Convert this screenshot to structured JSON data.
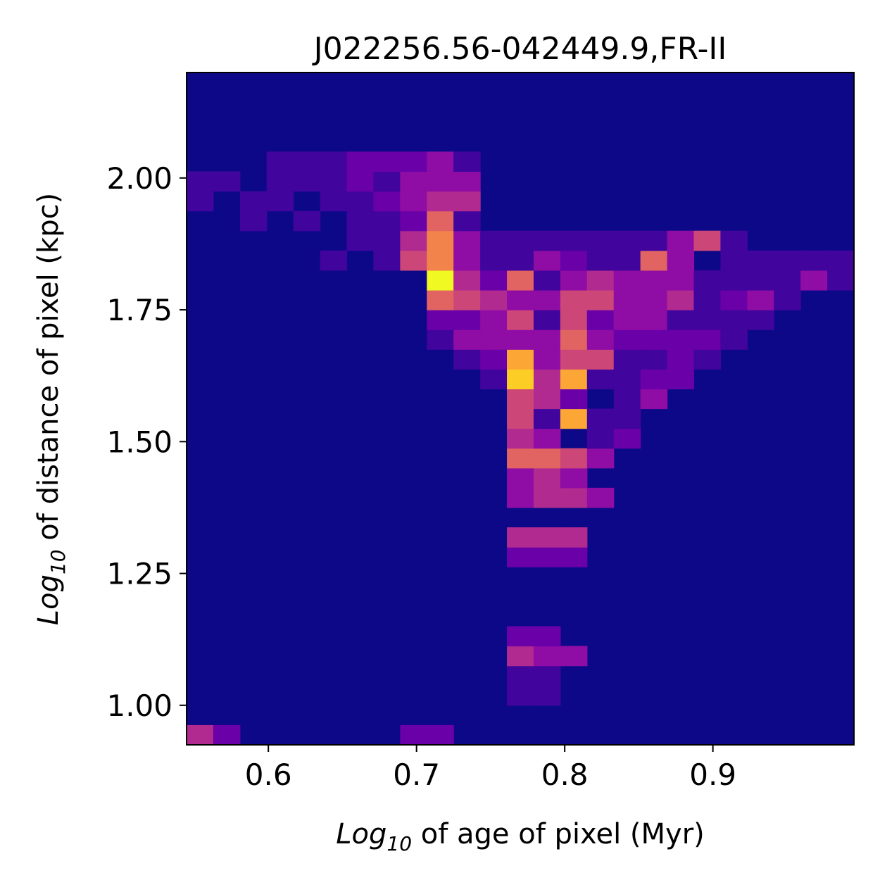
{
  "chart_data": {
    "type": "heatmap",
    "title": "J022256.56-042449.9,FR-II",
    "xlabel": {
      "prefix": "Log",
      "sub": "10",
      "rest": " of age of pixel (Myr)"
    },
    "ylabel": {
      "prefix": "Log",
      "sub": "10",
      "rest": " of distance of pixel (kpc)"
    },
    "xlim": [
      0.5448,
      0.9952
    ],
    "ylim": [
      0.925,
      2.2
    ],
    "x_ticks": [
      0.6,
      0.7,
      0.8,
      0.9
    ],
    "x_tick_labels": [
      "0.6",
      "0.7",
      "0.8",
      "0.9"
    ],
    "y_ticks": [
      1.0,
      1.25,
      1.5,
      1.75,
      2.0
    ],
    "y_tick_labels": [
      "1.00",
      "1.25",
      "1.50",
      "1.75",
      "2.00"
    ],
    "colormap": "plasma",
    "background_color": "#0d0887",
    "grid": false,
    "legend": "none",
    "bins": {
      "x_edges_range": [
        0.5448,
        0.9952
      ],
      "nx": 25,
      "y_edges_range": [
        0.925,
        2.2
      ],
      "ny": 34
    },
    "cells": [
      [
        0,
        0,
        4
      ],
      [
        1,
        0,
        2
      ],
      [
        8,
        0,
        2
      ],
      [
        9,
        0,
        2
      ],
      [
        12,
        2,
        1
      ],
      [
        13,
        2,
        1
      ],
      [
        12,
        3,
        1
      ],
      [
        13,
        3,
        1
      ],
      [
        12,
        4,
        4
      ],
      [
        13,
        4,
        3
      ],
      [
        14,
        4,
        3
      ],
      [
        12,
        5,
        2
      ],
      [
        13,
        5,
        2
      ],
      [
        12,
        9,
        2
      ],
      [
        13,
        9,
        2
      ],
      [
        14,
        9,
        2
      ],
      [
        12,
        10,
        4
      ],
      [
        13,
        10,
        4
      ],
      [
        14,
        10,
        4
      ],
      [
        12,
        12,
        3
      ],
      [
        13,
        12,
        4
      ],
      [
        14,
        12,
        4
      ],
      [
        15,
        12,
        3
      ],
      [
        12,
        13,
        3
      ],
      [
        13,
        13,
        4
      ],
      [
        14,
        13,
        3
      ],
      [
        12,
        14,
        6
      ],
      [
        13,
        14,
        6
      ],
      [
        14,
        14,
        5
      ],
      [
        15,
        14,
        3
      ],
      [
        12,
        15,
        4
      ],
      [
        13,
        15,
        3
      ],
      [
        15,
        15,
        1
      ],
      [
        16,
        15,
        2
      ],
      [
        12,
        16,
        5
      ],
      [
        13,
        16,
        1
      ],
      [
        14,
        16,
        8
      ],
      [
        15,
        16,
        1
      ],
      [
        16,
        16,
        1
      ],
      [
        12,
        17,
        5
      ],
      [
        13,
        17,
        4
      ],
      [
        14,
        17,
        2
      ],
      [
        16,
        17,
        1
      ],
      [
        17,
        17,
        3
      ],
      [
        11,
        18,
        1
      ],
      [
        12,
        18,
        9
      ],
      [
        13,
        18,
        4
      ],
      [
        14,
        18,
        8
      ],
      [
        15,
        18,
        1
      ],
      [
        16,
        18,
        1
      ],
      [
        17,
        18,
        2
      ],
      [
        18,
        18,
        2
      ],
      [
        10,
        19,
        1
      ],
      [
        11,
        19,
        2
      ],
      [
        12,
        19,
        8
      ],
      [
        13,
        19,
        3
      ],
      [
        14,
        19,
        5
      ],
      [
        15,
        19,
        5
      ],
      [
        16,
        19,
        1
      ],
      [
        17,
        19,
        1
      ],
      [
        18,
        19,
        2
      ],
      [
        19,
        19,
        1
      ],
      [
        9,
        20,
        1
      ],
      [
        10,
        20,
        3
      ],
      [
        11,
        20,
        3
      ],
      [
        12,
        20,
        3
      ],
      [
        13,
        20,
        3
      ],
      [
        14,
        20,
        6
      ],
      [
        15,
        20,
        3
      ],
      [
        16,
        20,
        2
      ],
      [
        17,
        20,
        2
      ],
      [
        18,
        20,
        2
      ],
      [
        19,
        20,
        2
      ],
      [
        20,
        20,
        1
      ],
      [
        9,
        21,
        2
      ],
      [
        10,
        21,
        2
      ],
      [
        11,
        21,
        3
      ],
      [
        12,
        21,
        5
      ],
      [
        13,
        21,
        1
      ],
      [
        14,
        21,
        5
      ],
      [
        15,
        21,
        2
      ],
      [
        16,
        21,
        3
      ],
      [
        17,
        21,
        3
      ],
      [
        18,
        21,
        1
      ],
      [
        19,
        21,
        1
      ],
      [
        20,
        21,
        1
      ],
      [
        21,
        21,
        1
      ],
      [
        9,
        22,
        6
      ],
      [
        10,
        22,
        5
      ],
      [
        11,
        22,
        4
      ],
      [
        12,
        22,
        3
      ],
      [
        13,
        22,
        3
      ],
      [
        14,
        22,
        5
      ],
      [
        15,
        22,
        5
      ],
      [
        16,
        22,
        3
      ],
      [
        17,
        22,
        3
      ],
      [
        18,
        22,
        4
      ],
      [
        19,
        22,
        1
      ],
      [
        20,
        22,
        2
      ],
      [
        21,
        22,
        3
      ],
      [
        22,
        22,
        1
      ],
      [
        9,
        23,
        10
      ],
      [
        10,
        23,
        4
      ],
      [
        11,
        23,
        2
      ],
      [
        12,
        23,
        6
      ],
      [
        13,
        23,
        1
      ],
      [
        14,
        23,
        3
      ],
      [
        15,
        23,
        4
      ],
      [
        16,
        23,
        3
      ],
      [
        17,
        23,
        3
      ],
      [
        18,
        23,
        3
      ],
      [
        19,
        23,
        1
      ],
      [
        20,
        23,
        1
      ],
      [
        21,
        23,
        1
      ],
      [
        22,
        23,
        1
      ],
      [
        23,
        23,
        3
      ],
      [
        24,
        23,
        1
      ],
      [
        5,
        24,
        1
      ],
      [
        7,
        24,
        1
      ],
      [
        8,
        24,
        5
      ],
      [
        9,
        24,
        7
      ],
      [
        10,
        24,
        3
      ],
      [
        11,
        24,
        1
      ],
      [
        12,
        24,
        1
      ],
      [
        13,
        24,
        3
      ],
      [
        14,
        24,
        2
      ],
      [
        15,
        24,
        1
      ],
      [
        16,
        24,
        1
      ],
      [
        17,
        24,
        6
      ],
      [
        18,
        24,
        3
      ],
      [
        20,
        24,
        1
      ],
      [
        21,
        24,
        1
      ],
      [
        22,
        24,
        1
      ],
      [
        23,
        24,
        1
      ],
      [
        24,
        24,
        1
      ],
      [
        6,
        25,
        1
      ],
      [
        7,
        25,
        1
      ],
      [
        8,
        25,
        4
      ],
      [
        9,
        25,
        7
      ],
      [
        10,
        25,
        3
      ],
      [
        11,
        25,
        1
      ],
      [
        12,
        25,
        1
      ],
      [
        13,
        25,
        1
      ],
      [
        14,
        25,
        1
      ],
      [
        15,
        25,
        1
      ],
      [
        16,
        25,
        1
      ],
      [
        17,
        25,
        1
      ],
      [
        18,
        25,
        3
      ],
      [
        19,
        25,
        5
      ],
      [
        20,
        25,
        1
      ],
      [
        2,
        26,
        1
      ],
      [
        4,
        26,
        1
      ],
      [
        6,
        26,
        1
      ],
      [
        7,
        26,
        1
      ],
      [
        8,
        26,
        2
      ],
      [
        9,
        26,
        6
      ],
      [
        10,
        26,
        1
      ],
      [
        0,
        27,
        1
      ],
      [
        2,
        27,
        1
      ],
      [
        3,
        27,
        1
      ],
      [
        5,
        27,
        1
      ],
      [
        6,
        27,
        1
      ],
      [
        7,
        27,
        2
      ],
      [
        8,
        27,
        3
      ],
      [
        9,
        27,
        4
      ],
      [
        10,
        27,
        4
      ],
      [
        0,
        28,
        1
      ],
      [
        1,
        28,
        1
      ],
      [
        3,
        28,
        1
      ],
      [
        4,
        28,
        1
      ],
      [
        5,
        28,
        1
      ],
      [
        6,
        28,
        2
      ],
      [
        7,
        28,
        1
      ],
      [
        8,
        28,
        3
      ],
      [
        9,
        28,
        3
      ],
      [
        10,
        28,
        3
      ],
      [
        3,
        29,
        1
      ],
      [
        4,
        29,
        1
      ],
      [
        5,
        29,
        1
      ],
      [
        6,
        29,
        2
      ],
      [
        7,
        29,
        2
      ],
      [
        8,
        29,
        2
      ],
      [
        9,
        29,
        3
      ],
      [
        10,
        29,
        1
      ]
    ]
  }
}
